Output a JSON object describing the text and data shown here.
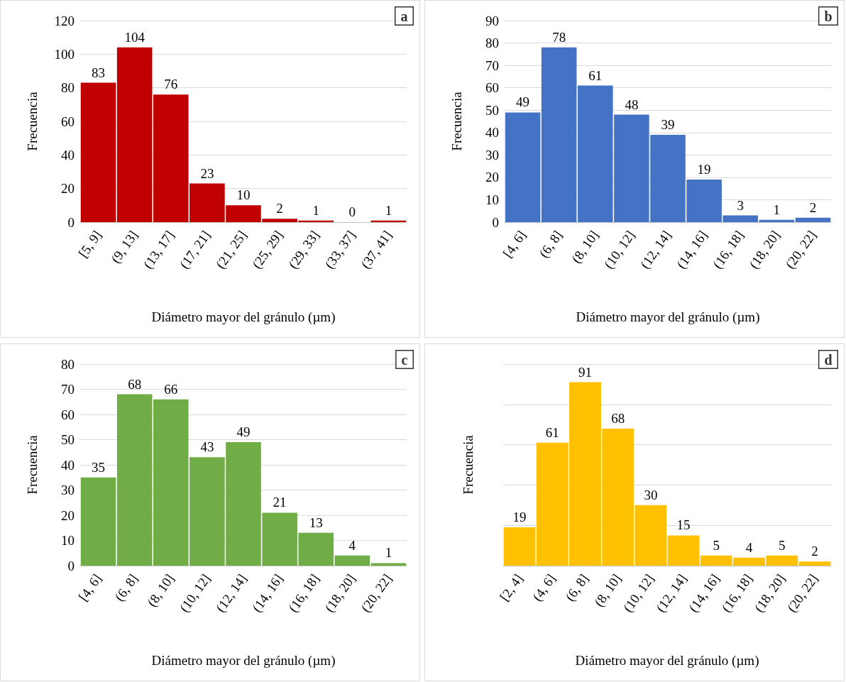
{
  "chart_data": [
    {
      "type": "bar",
      "categories": [
        "[5, 9]",
        "(9, 13]",
        "(13, 17]",
        "(17, 21]",
        "(21, 25]",
        "(25, 29]",
        "(29, 33]",
        "(33, 37]",
        "(37, 41]"
      ],
      "values": [
        83,
        104,
        76,
        23,
        10,
        2,
        1,
        0,
        1
      ],
      "color": "#c00000",
      "ylim": [
        0,
        120
      ],
      "yticks": [
        0,
        20,
        40,
        60,
        80,
        100,
        120
      ],
      "grid": "y",
      "data_labels": true,
      "xlabel": "Diámetro mayor del gránulo (µm)",
      "ylabel": "Frecuencia",
      "annotations": [
        "a"
      ]
    },
    {
      "type": "bar",
      "categories": [
        "[4, 6]",
        "(6, 8]",
        "(8, 10]",
        "(10, 12]",
        "(12, 14]",
        "(14, 16]",
        "(16, 18]",
        "(18, 20]",
        "(20, 22]"
      ],
      "values": [
        49,
        78,
        61,
        48,
        39,
        19,
        3,
        1,
        2
      ],
      "color": "#4472c4",
      "ylim": [
        0,
        90
      ],
      "yticks": [
        0,
        10,
        20,
        30,
        40,
        50,
        60,
        70,
        80,
        90
      ],
      "grid": "y",
      "data_labels": true,
      "xlabel": "Diámetro mayor del gránulo (µm)",
      "ylabel": "Frecuencia",
      "annotations": [
        "b"
      ]
    },
    {
      "type": "bar",
      "categories": [
        "[4, 6]",
        "(6, 8]",
        "(8, 10]",
        "(10, 12]",
        "(12, 14]",
        "(14, 16]",
        "(16, 18]",
        "(18, 20]",
        "(20, 22]"
      ],
      "values": [
        35,
        68,
        66,
        43,
        49,
        21,
        13,
        4,
        1
      ],
      "color": "#70ad47",
      "ylim": [
        0,
        80
      ],
      "yticks": [
        0,
        10,
        20,
        30,
        40,
        50,
        60,
        70,
        80
      ],
      "grid": "y",
      "data_labels": true,
      "xlabel": "Diámetro mayor del gránulo (µm)",
      "ylabel": "Frecuencia",
      "annotations": [
        "c"
      ]
    },
    {
      "type": "bar",
      "categories": [
        "[2, 4]",
        "(4, 6]",
        "(6, 8]",
        "(8, 10]",
        "(10, 12]",
        "(12, 14]",
        "(14, 16]",
        "(16, 18]",
        "(18, 20]",
        "(20, 22]"
      ],
      "values": [
        19,
        61,
        91,
        68,
        30,
        15,
        5,
        4,
        5,
        2
      ],
      "color": "#ffc000",
      "grid": "y",
      "tick_labels": "x",
      "data_labels": true,
      "xlabel": "Diámetro mayor del gránulo (µm)",
      "ylabel": "Frecuencia",
      "annotations": [
        "d"
      ]
    }
  ]
}
